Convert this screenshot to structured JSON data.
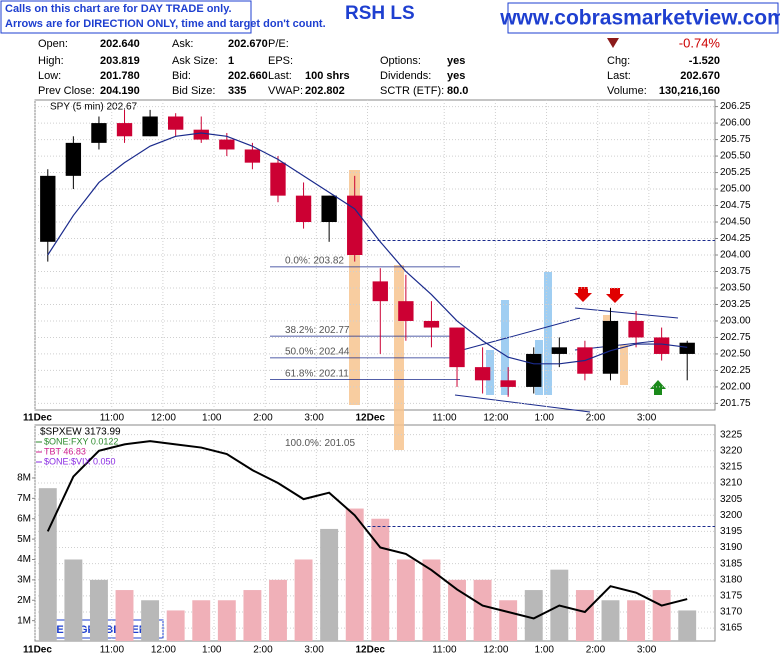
{
  "header": {
    "notice": [
      "Calls on this chart are for DAY TRADE only.",
      "Arrows are for DIRECTION ONLY, time and target don't count."
    ],
    "title": "RSH LS",
    "site": "www.cobrasmarketview.com",
    "change_pct": "-0.74%",
    "quote_columns": [
      [
        [
          "Open:",
          "202.640"
        ],
        [
          "High:",
          "203.819"
        ],
        [
          "Low:",
          "201.780"
        ],
        [
          "Prev Close:",
          "204.190"
        ]
      ],
      [
        [
          "Ask:",
          "202.670"
        ],
        [
          "Ask Size:",
          "1"
        ],
        [
          "Bid:",
          "202.660"
        ],
        [
          "Bid Size:",
          "335"
        ]
      ],
      [
        [
          "P/E:"
        ],
        [
          "EPS:"
        ],
        [
          "Last:",
          "100 shrs"
        ],
        [
          "VWAP:",
          "202.802"
        ]
      ],
      [
        [
          "Options:",
          "yes"
        ],
        [
          "Dividends:",
          "yes"
        ],
        [
          "SCTR (ETF):",
          "80.0"
        ]
      ],
      [
        [
          "Chg:",
          "-1.520"
        ],
        [
          "Last:",
          "202.670"
        ],
        [
          "Volume:",
          "130,216,160"
        ]
      ]
    ]
  },
  "chart_data": [
    {
      "type": "candlestick",
      "label": "SPY (5 min) 202.67",
      "categories": [
        "11Dec",
        null,
        null,
        "11:00",
        null,
        "12:00",
        null,
        "1:00",
        null,
        "2:00",
        null,
        "3:00",
        null,
        "12Dec",
        null,
        null,
        "11:00",
        null,
        "12:00",
        null,
        "1:00",
        null,
        "2:00",
        null,
        "3:00",
        null
      ],
      "open": [
        204.2,
        205.2,
        205.7,
        206.0,
        205.8,
        206.1,
        205.9,
        205.75,
        205.6,
        205.4,
        204.9,
        204.5,
        204.9,
        203.6,
        203.3,
        203.0,
        202.9,
        202.3,
        202.1,
        202.0,
        202.5,
        202.6,
        202.2,
        203.0,
        202.75,
        202.5
      ],
      "high": [
        205.3,
        205.8,
        206.1,
        206.2,
        206.2,
        206.15,
        206.1,
        205.85,
        205.7,
        205.5,
        205.1,
        204.9,
        205.2,
        203.8,
        203.7,
        203.3,
        202.9,
        202.6,
        202.3,
        202.6,
        202.75,
        202.7,
        203.2,
        203.15,
        202.9,
        202.7
      ],
      "low": [
        203.9,
        205.0,
        205.6,
        205.7,
        205.8,
        205.8,
        205.7,
        205.5,
        205.3,
        204.8,
        204.4,
        204.2,
        203.9,
        202.5,
        202.7,
        202.6,
        202.0,
        201.9,
        201.85,
        201.9,
        202.3,
        202.1,
        202.1,
        202.6,
        202.4,
        202.1
      ],
      "close": [
        205.2,
        205.7,
        206.0,
        205.8,
        206.1,
        205.9,
        205.75,
        205.6,
        205.4,
        204.9,
        204.5,
        204.9,
        204.0,
        203.3,
        203.0,
        202.9,
        202.3,
        202.1,
        202.0,
        202.5,
        202.6,
        202.2,
        203.0,
        202.75,
        202.5,
        202.67
      ],
      "up_color": "#000000",
      "down_color": "#cc0033",
      "ma": {
        "color": "#1a2a8c",
        "values": [
          204.0,
          204.6,
          205.1,
          205.4,
          205.65,
          205.8,
          205.85,
          205.8,
          205.65,
          205.45,
          205.2,
          204.95,
          204.7,
          204.2,
          203.75,
          203.4,
          203.0,
          202.7,
          202.45,
          202.35,
          202.35,
          202.4,
          202.55,
          202.65,
          202.65,
          202.6
        ]
      },
      "fib_levels": [
        {
          "label": "0.0%: 203.82",
          "value": 203.82
        },
        {
          "label": "38.2%: 202.77",
          "value": 202.77
        },
        {
          "label": "50.0%: 202.44",
          "value": 202.44
        },
        {
          "label": "61.8%: 202.11",
          "value": 202.11
        },
        {
          "label": "100.0%: 201.05",
          "value": 201.05
        }
      ],
      "reference_line": 204.22,
      "ylim": [
        201.65,
        206.35
      ],
      "yticks": [
        201.75,
        {
          "value": 202,
          "label": "202.00"
        },
        202.25,
        {
          "value": 202.5,
          "label": "202.50"
        },
        202.75,
        {
          "value": 203,
          "label": "203.00"
        },
        203.25,
        {
          "value": 203.5,
          "label": "203.50"
        },
        203.75,
        {
          "value": 204,
          "label": "204.00"
        },
        204.25,
        {
          "value": 204.5,
          "label": "204.50"
        },
        204.75,
        {
          "value": 205,
          "label": "205.00"
        },
        205.25,
        {
          "value": 205.5,
          "label": "205.50"
        },
        205.75,
        {
          "value": 206,
          "label": "206.00"
        },
        206.25
      ],
      "grid": true
    },
    {
      "type": "line",
      "series": [
        {
          "name": "$SPXEW 3173.99",
          "color": "#000000",
          "values": [
            3195,
            3212,
            3220,
            3222,
            3223,
            3222,
            3221,
            3219,
            3214,
            3210,
            3205,
            3207,
            3200,
            3190,
            3188,
            3183,
            3177,
            3172,
            3170,
            3168,
            3172,
            3170,
            3178,
            3176,
            3172,
            3174
          ]
        }
      ],
      "legend": [
        {
          "name": "$ONE:FXY 0.0122",
          "color": "#2e8b2e"
        },
        {
          "name": "TBT 46.83",
          "color": "#d02090"
        },
        {
          "name": "$ONE:$VIX 0.050",
          "color": "#8a2be2"
        }
      ],
      "reference_line": 3196.5,
      "ylim": [
        3161,
        3228
      ],
      "yticks": [
        3165,
        3170,
        3175,
        3180,
        3185,
        3190,
        3195,
        3200,
        3205,
        3210,
        3215,
        3220,
        3225
      ],
      "volume": {
        "values": [
          7.5,
          4,
          3,
          2.5,
          2,
          1.5,
          2,
          2,
          2.5,
          3,
          4,
          5.5,
          6.5,
          6,
          4,
          4,
          3,
          3,
          2,
          2.5,
          3.5,
          2.5,
          2,
          2,
          2.5,
          1.5
        ],
        "ylim": [
          0,
          10.6
        ],
        "yticks": [
          {
            "value": 1,
            "label": "1M"
          },
          {
            "value": 2,
            "label": "2M"
          },
          {
            "value": 3,
            "label": "3M"
          },
          {
            "value": 4,
            "label": "4M"
          },
          {
            "value": 5,
            "label": "5M"
          },
          {
            "value": 6,
            "label": "6M"
          },
          {
            "value": 7,
            "label": "7M"
          },
          {
            "value": 8,
            "label": "8M"
          }
        ]
      },
      "annotation": "WE MIGHT BE HERE.",
      "grid": true
    }
  ]
}
